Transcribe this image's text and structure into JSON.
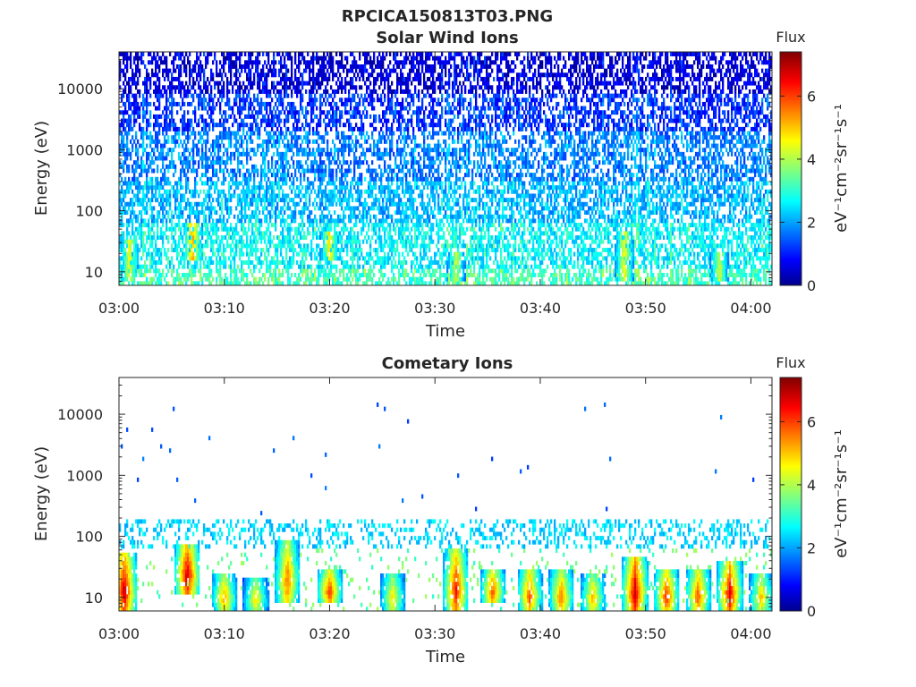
{
  "figure": {
    "title": "RPCICA150813T03.PNG"
  },
  "chart_data": [
    {
      "type": "heatmap",
      "title": "Solar Wind Ions",
      "xlabel": "Time",
      "ylabel": "Energy (eV)",
      "y_scale": "log",
      "xlim": [
        "03:00",
        "04:02"
      ],
      "ylim": [
        6,
        40000
      ],
      "x_ticks": [
        "03:00",
        "03:10",
        "03:20",
        "03:30",
        "03:40",
        "03:50",
        "04:00"
      ],
      "y_ticks": [
        "10",
        "100",
        "1000",
        "10000"
      ],
      "colorbar": {
        "title": "Flux",
        "label": "eV⁻¹cm⁻²sr⁻¹s⁻¹",
        "range": [
          0,
          7.4
        ],
        "ticks": [
          "0",
          "2",
          "4",
          "6"
        ]
      },
      "background_levels": [
        {
          "energy_range": [
            6,
            12
          ],
          "typical_flux": 3.2
        },
        {
          "energy_range": [
            12,
            60
          ],
          "typical_flux": 2.7
        },
        {
          "energy_range": [
            60,
            300
          ],
          "typical_flux": 2.2
        },
        {
          "energy_range": [
            300,
            2000
          ],
          "typical_flux": 1.8
        },
        {
          "energy_range": [
            2000,
            8000
          ],
          "typical_flux": 1.2
        },
        {
          "energy_range": [
            8000,
            40000
          ],
          "typical_flux": 0.6
        }
      ],
      "enhancements": [
        {
          "time": "03:01",
          "energy_range": [
            7,
            35
          ],
          "peak_flux": 4.5
        },
        {
          "time": "03:07",
          "energy_range": [
            15,
            60
          ],
          "peak_flux": 5.2
        },
        {
          "time": "03:20",
          "energy_range": [
            15,
            45
          ],
          "peak_flux": 4.8
        },
        {
          "time": "03:32",
          "energy_range": [
            7,
            20
          ],
          "peak_flux": 4.2
        },
        {
          "time": "03:48",
          "energy_range": [
            7,
            45
          ],
          "peak_flux": 4.6
        },
        {
          "time": "03:57",
          "energy_range": [
            7,
            20
          ],
          "peak_flux": 4.3
        }
      ]
    },
    {
      "type": "heatmap",
      "title": "Cometary Ions",
      "xlabel": "Time",
      "ylabel": "Energy (eV)",
      "y_scale": "log",
      "xlim": [
        "03:00",
        "04:02"
      ],
      "ylim": [
        6,
        40000
      ],
      "x_ticks": [
        "03:00",
        "03:10",
        "03:20",
        "03:30",
        "03:40",
        "03:50",
        "04:00"
      ],
      "y_ticks": [
        "10",
        "100",
        "1000",
        "10000"
      ],
      "colorbar": {
        "title": "Flux",
        "label": "eV⁻¹cm⁻²sr⁻¹s⁻¹",
        "range": [
          0,
          7.4
        ],
        "ticks": [
          "0",
          "2",
          "4",
          "6"
        ]
      },
      "bursts": [
        {
          "time": "03:00.5",
          "energy_range": [
            6,
            55
          ],
          "peak_flux": 7.0
        },
        {
          "time": "03:06.5",
          "energy_range": [
            12,
            80
          ],
          "peak_flux": 7.0
        },
        {
          "time": "03:10",
          "energy_range": [
            6,
            25
          ],
          "peak_flux": 5.5
        },
        {
          "time": "03:13",
          "energy_range": [
            6,
            20
          ],
          "peak_flux": 5.0
        },
        {
          "time": "03:16",
          "energy_range": [
            8,
            90
          ],
          "peak_flux": 5.8
        },
        {
          "time": "03:20",
          "energy_range": [
            8,
            30
          ],
          "peak_flux": 6.2
        },
        {
          "time": "03:26",
          "energy_range": [
            6,
            25
          ],
          "peak_flux": 5.0
        },
        {
          "time": "03:32",
          "energy_range": [
            6,
            60
          ],
          "peak_flux": 6.5
        },
        {
          "time": "03:35.5",
          "energy_range": [
            8,
            30
          ],
          "peak_flux": 6.0
        },
        {
          "time": "03:39",
          "energy_range": [
            6,
            30
          ],
          "peak_flux": 6.0
        },
        {
          "time": "03:42",
          "energy_range": [
            6,
            30
          ],
          "peak_flux": 5.8
        },
        {
          "time": "03:45",
          "energy_range": [
            6,
            25
          ],
          "peak_flux": 5.3
        },
        {
          "time": "03:49",
          "energy_range": [
            6,
            50
          ],
          "peak_flux": 7.0
        },
        {
          "time": "03:52",
          "energy_range": [
            6,
            30
          ],
          "peak_flux": 6.2
        },
        {
          "time": "03:55",
          "energy_range": [
            6,
            30
          ],
          "peak_flux": 6.0
        },
        {
          "time": "03:58",
          "energy_range": [
            6,
            40
          ],
          "peak_flux": 6.8
        },
        {
          "time": "04:01",
          "energy_range": [
            6,
            25
          ],
          "peak_flux": 5.2
        }
      ],
      "background_band": {
        "energy_range": [
          60,
          200
        ],
        "typical_flux": 2.5
      },
      "scattered_points_energy_range": [
        200,
        15000
      ]
    }
  ]
}
